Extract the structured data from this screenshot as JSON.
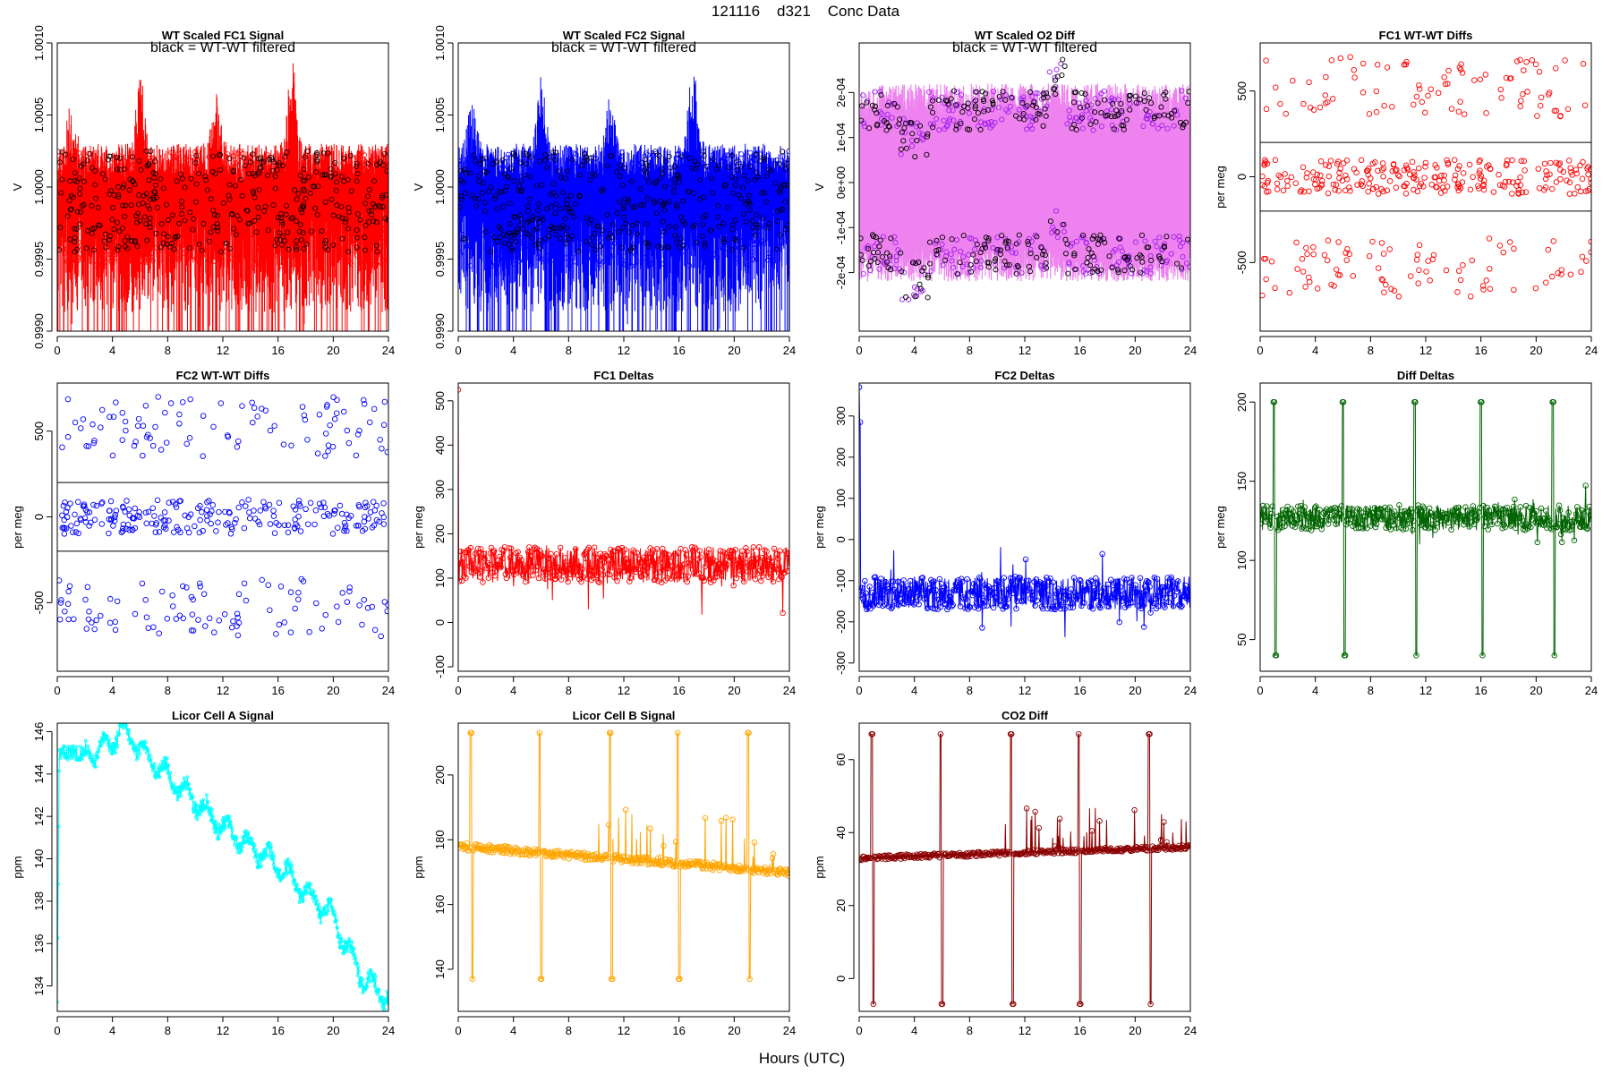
{
  "page_title": "121116    d321    Conc Data",
  "shared_xlabel": "Hours (UTC)",
  "chart_data": [
    {
      "id": "fc1-signal",
      "type": "line",
      "title": "WT Scaled FC1 Signal",
      "annotation": "black = WT-WT filtered",
      "ylabel": "V",
      "xlim": [
        0,
        24
      ],
      "ylim": [
        0.999,
        1.001
      ],
      "xticks": [
        0,
        4,
        8,
        12,
        16,
        20,
        24
      ],
      "yticks": [
        0.999,
        0.9995,
        1,
        1.0005,
        1.001
      ],
      "ytick_labels": [
        "0.9990",
        "0.9995",
        "1.0000",
        "1.0005",
        "1.0010"
      ],
      "colors": {
        "trace": "#ff0000",
        "points": "#ff0000",
        "filtered": "#000000"
      },
      "profile": {
        "kind": "noisy-band",
        "base": 0.99985,
        "amplitude": 0.00045,
        "peaks": [
          [
            1,
            0.0003
          ],
          [
            6,
            0.0005
          ],
          [
            11.5,
            0.00035
          ],
          [
            17,
            0.0006
          ]
        ],
        "seed": 11
      },
      "series": [
        {
          "name": "black = WT-WT filtered",
          "color": "#000000"
        }
      ]
    },
    {
      "id": "fc2-signal",
      "type": "line",
      "title": "WT Scaled FC2 Signal",
      "annotation": "black = WT-WT filtered",
      "ylabel": "V",
      "xlim": [
        0,
        24
      ],
      "ylim": [
        0.999,
        1.001
      ],
      "xticks": [
        0,
        4,
        8,
        12,
        16,
        20,
        24
      ],
      "yticks": [
        0.999,
        0.9995,
        1,
        1.0005,
        1.001
      ],
      "ytick_labels": [
        "0.9990",
        "0.9995",
        "1.0000",
        "1.0005",
        "1.0010"
      ],
      "colors": {
        "trace": "#0000ff",
        "points": "#0000ff",
        "filtered": "#000000"
      },
      "profile": {
        "kind": "noisy-band",
        "base": 0.99985,
        "amplitude": 0.00045,
        "peaks": [
          [
            1,
            0.0003
          ],
          [
            6,
            0.0005
          ],
          [
            11,
            0.00035
          ],
          [
            17,
            0.0006
          ]
        ],
        "seed": 23
      },
      "series": [
        {
          "name": "black = WT-WT filtered",
          "color": "#000000"
        }
      ]
    },
    {
      "id": "o2-diff",
      "type": "line",
      "title": "WT Scaled O2 Diff",
      "annotation": "black = WT-WT filtered",
      "ylabel": "V",
      "xlim": [
        0,
        24
      ],
      "ylim": [
        -0.00033,
        0.00031
      ],
      "xticks": [
        0,
        4,
        8,
        12,
        16,
        20,
        24
      ],
      "yticks": [
        -0.0002,
        -0.0001,
        0,
        0.0001,
        0.0002
      ],
      "ytick_labels": [
        "-2e-04",
        "-1e-04",
        "0e+00",
        "1e-04",
        "2e-04"
      ],
      "colors": {
        "trace": "#ee82ee",
        "points": "#a020f0",
        "filtered": "#000000"
      },
      "profile": {
        "kind": "bimodal",
        "level": 0.00018,
        "spread": 4e-05,
        "dip": [
          [
            4,
            8e-05
          ],
          [
            14.5,
            -8e-05
          ]
        ],
        "seed": 37
      },
      "series": [
        {
          "name": "black = WT-WT filtered",
          "color": "#000000"
        }
      ]
    },
    {
      "id": "fc1-wtwt",
      "type": "scatter",
      "title": "FC1 WT-WT Diffs",
      "ylabel": "per meg",
      "xlim": [
        0,
        24
      ],
      "ylim": [
        -900,
        780
      ],
      "xticks": [
        0,
        4,
        8,
        12,
        16,
        20,
        24
      ],
      "yticks": [
        -500,
        0,
        500
      ],
      "ytick_labels": [
        "-500",
        "0",
        "500"
      ],
      "hlines": [
        200,
        -200
      ],
      "colors": {
        "points": "#ff0000",
        "hlines": "#000000"
      },
      "profile": {
        "kind": "scatter-band",
        "n": 420,
        "inner": 100,
        "outer": [
          350,
          700
        ],
        "outer_frac": 0.45,
        "seed": 41
      }
    },
    {
      "id": "fc2-wtwt",
      "type": "scatter",
      "title": "FC2 WT-WT Diffs",
      "ylabel": "per meg",
      "xlim": [
        0,
        24
      ],
      "ylim": [
        -900,
        780
      ],
      "xticks": [
        0,
        4,
        8,
        12,
        16,
        20,
        24
      ],
      "yticks": [
        -500,
        0,
        500
      ],
      "ytick_labels": [
        "-500",
        "0",
        "500"
      ],
      "hlines": [
        200,
        -200
      ],
      "colors": {
        "points": "#0000ff",
        "hlines": "#000000"
      },
      "profile": {
        "kind": "scatter-band",
        "n": 420,
        "inner": 100,
        "outer": [
          350,
          700
        ],
        "outer_frac": 0.45,
        "seed": 53
      }
    },
    {
      "id": "fc1-deltas",
      "type": "line",
      "title": "FC1 Deltas",
      "ylabel": "per meg",
      "xlim": [
        0,
        24
      ],
      "ylim": [
        -110,
        540
      ],
      "xticks": [
        0,
        4,
        8,
        12,
        16,
        20,
        24
      ],
      "yticks": [
        -100,
        0,
        100,
        200,
        300,
        400,
        500
      ],
      "ytick_labels": [
        "-100",
        "0",
        "100",
        "200",
        "300",
        "400",
        "500"
      ],
      "colors": {
        "points": "#ff0000"
      },
      "profile": {
        "kind": "noisy-line",
        "base": 130,
        "noise": 40,
        "spikes": [
          [
            0,
            525
          ],
          [
            0.2,
            160
          ]
        ],
        "seed": 61
      }
    },
    {
      "id": "fc2-deltas",
      "type": "line",
      "title": "FC2 Deltas",
      "ylabel": "per meg",
      "xlim": [
        0,
        24
      ],
      "ylim": [
        -320,
        380
      ],
      "xticks": [
        0,
        4,
        8,
        12,
        16,
        20,
        24
      ],
      "yticks": [
        -300,
        -200,
        -100,
        0,
        100,
        200,
        300
      ],
      "ytick_labels": [
        "-300",
        "-200",
        "-100",
        "0",
        "100",
        "200",
        "300"
      ],
      "colors": {
        "points": "#0000ff"
      },
      "profile": {
        "kind": "noisy-line",
        "base": -130,
        "noise": 40,
        "spikes": [
          [
            0,
            370
          ],
          [
            0.05,
            285
          ]
        ],
        "seed": 67
      }
    },
    {
      "id": "diff-deltas",
      "type": "line",
      "title": "Diff Deltas",
      "ylabel": "per meg",
      "xlim": [
        0,
        24
      ],
      "ylim": [
        30,
        212
      ],
      "xticks": [
        0,
        4,
        8,
        12,
        16,
        20,
        24
      ],
      "yticks": [
        50,
        100,
        150,
        200
      ],
      "ytick_labels": [
        "50",
        "100",
        "150",
        "200"
      ],
      "colors": {
        "points": "#006400"
      },
      "profile": {
        "kind": "noisy-line",
        "base": 127,
        "noise": 8,
        "events": [
          1,
          6,
          11.2,
          16,
          21.2
        ],
        "event_hi": 200,
        "event_lo": 40,
        "seed": 71
      }
    },
    {
      "id": "licor-a",
      "type": "line",
      "title": "Licor Cell A Signal",
      "ylabel": "ppm",
      "xlim": [
        0,
        24
      ],
      "ylim": [
        132.8,
        146.4
      ],
      "xticks": [
        0,
        4,
        8,
        12,
        16,
        20,
        24
      ],
      "yticks": [
        134,
        136,
        138,
        140,
        142,
        144,
        146
      ],
      "ytick_labels": [
        "134",
        "136",
        "138",
        "140",
        "142",
        "144",
        "146"
      ],
      "colors": {
        "points": "#00ffff"
      },
      "profile": {
        "kind": "drift",
        "anchors": [
          [
            0,
            133.4
          ],
          [
            0.15,
            145.0
          ],
          [
            3,
            145.0
          ],
          [
            4.8,
            146.1
          ],
          [
            6,
            145.2
          ],
          [
            12,
            141.5
          ],
          [
            16,
            139.7
          ],
          [
            20,
            137.2
          ],
          [
            22,
            134.5
          ],
          [
            24,
            133.4
          ]
        ],
        "noise": 0.35,
        "wave": 0.45,
        "seed": 83
      }
    },
    {
      "id": "licor-b",
      "type": "line",
      "title": "Licor Cell B Signal",
      "ylabel": "ppm",
      "xlim": [
        0,
        24
      ],
      "ylim": [
        127,
        216
      ],
      "xticks": [
        0,
        4,
        8,
        12,
        16,
        20,
        24
      ],
      "yticks": [
        140,
        160,
        180,
        200
      ],
      "ytick_labels": [
        "140",
        "160",
        "180",
        "200"
      ],
      "colors": {
        "points": "#ffa500"
      },
      "profile": {
        "kind": "events",
        "anchors": [
          [
            0,
            178
          ],
          [
            24,
            170
          ]
        ],
        "noise": 1.2,
        "events": [
          0.9,
          5.9,
          11,
          15.9,
          21
        ],
        "event_hi": 213,
        "event_lo": 137,
        "seed": 89
      }
    },
    {
      "id": "co2-diff",
      "type": "line",
      "title": "CO2 Diff",
      "ylabel": "ppm",
      "xlim": [
        0,
        24
      ],
      "ylim": [
        -9,
        70
      ],
      "xticks": [
        0,
        4,
        8,
        12,
        16,
        20,
        24
      ],
      "yticks": [
        0,
        20,
        40,
        60
      ],
      "ytick_labels": [
        "0",
        "20",
        "40",
        "60"
      ],
      "colors": {
        "points": "#8b0000"
      },
      "profile": {
        "kind": "events",
        "anchors": [
          [
            0,
            33
          ],
          [
            24,
            36
          ]
        ],
        "noise": 0.6,
        "events": [
          0.9,
          5.9,
          11,
          15.9,
          21
        ],
        "event_hi": 67,
        "event_lo": -7,
        "seed": 97
      }
    }
  ]
}
